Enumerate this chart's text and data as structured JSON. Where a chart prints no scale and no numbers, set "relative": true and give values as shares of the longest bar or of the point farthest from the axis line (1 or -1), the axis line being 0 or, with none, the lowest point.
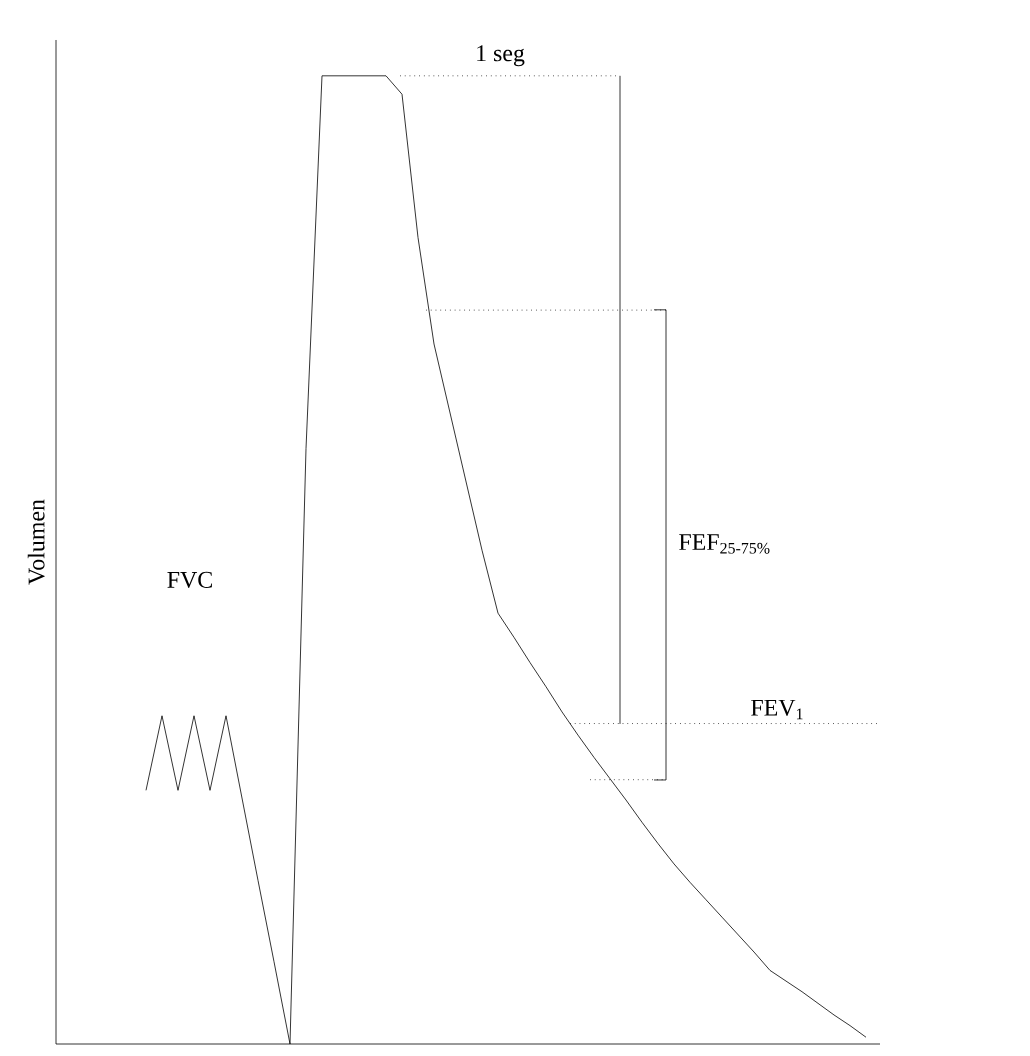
{
  "chart_data": {
    "type": "line",
    "relative": true,
    "ylabel": "Volumen",
    "categories": [
      null,
      null,
      null,
      null,
      null,
      null,
      null,
      null,
      null,
      null,
      null,
      null,
      null,
      null,
      null,
      null,
      null,
      null,
      null,
      null,
      null,
      null,
      null,
      null,
      null,
      null,
      null,
      null,
      null,
      null,
      null,
      null,
      null,
      null,
      null,
      null,
      null,
      null,
      null,
      null,
      null,
      null,
      null,
      null,
      null,
      null
    ],
    "series": [
      {
        "color": "#000000",
        "values": [
          0.262,
          0.339,
          0.262,
          0.339,
          0.262,
          0.339,
          0.254,
          0.169,
          0.085,
          0,
          0.615,
          1,
          1,
          1,
          1,
          1,
          0.981,
          0.833,
          0.723,
          0.652,
          0.581,
          0.51,
          0.445,
          0.42,
          0.394,
          0.369,
          0.343,
          0.319,
          0.296,
          0.274,
          0.252,
          0.229,
          0.207,
          0.186,
          0.167,
          0.149,
          0.131,
          0.113,
          0.095,
          0.076,
          0.065,
          0.054,
          0.042,
          0.03,
          0.019,
          0.007
        ]
      }
    ],
    "ref_lines": [
      {
        "axis": "y",
        "value": 1,
        "line_style": "dotted",
        "color": "#000000"
      },
      {
        "axis": "y",
        "value": 0.758,
        "line_style": "dotted",
        "color": "#000000"
      },
      {
        "axis": "y",
        "value": 0.273,
        "line_style": "dotted",
        "color": "#000000"
      },
      {
        "axis": "y",
        "value": 0.331,
        "line_style": "dotted",
        "color": "#000000",
        "label": "FEV$_{1}$"
      }
    ],
    "annotations": [
      "1 seg",
      "FVC",
      "FEF$_{25-75%}$"
    ]
  }
}
